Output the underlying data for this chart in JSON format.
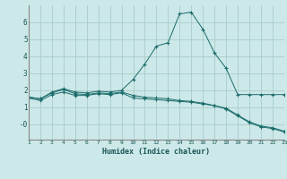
{
  "xlabel": "Humidex (Indice chaleur)",
  "bg_color": "#cce8e8",
  "grid_color": "#aacccc",
  "line_color": "#1a6b6b",
  "xlim": [
    1,
    23
  ],
  "ylim": [
    -0.9,
    7.0
  ],
  "xticks": [
    1,
    2,
    3,
    4,
    5,
    6,
    7,
    8,
    9,
    10,
    11,
    12,
    13,
    14,
    15,
    16,
    17,
    18,
    19,
    20,
    21,
    22,
    23
  ],
  "yticks": [
    0,
    1,
    2,
    3,
    4,
    5,
    6
  ],
  "ytick_labels": [
    "-0",
    "1",
    "2",
    "3",
    "4",
    "5",
    "6"
  ],
  "line1_x": [
    1,
    2,
    3,
    4,
    5,
    6,
    7,
    8,
    9,
    10,
    11,
    12,
    13,
    14,
    15,
    16,
    17,
    18,
    19,
    20,
    21,
    22,
    23
  ],
  "line1_y": [
    1.6,
    1.5,
    1.9,
    2.1,
    1.9,
    1.85,
    1.95,
    1.9,
    2.0,
    2.65,
    3.55,
    4.6,
    4.8,
    6.5,
    6.6,
    5.6,
    4.2,
    3.3,
    1.75,
    1.75,
    1.75,
    1.75,
    1.75
  ],
  "line2_x": [
    1,
    2,
    3,
    4,
    5,
    6,
    7,
    8,
    9,
    10,
    11,
    12,
    13,
    14,
    15,
    16,
    17,
    18,
    19,
    20,
    21,
    22,
    23
  ],
  "line2_y": [
    1.55,
    1.4,
    1.75,
    1.9,
    1.7,
    1.7,
    1.8,
    1.75,
    1.85,
    1.55,
    1.5,
    1.45,
    1.4,
    1.35,
    1.3,
    1.2,
    1.1,
    0.9,
    0.5,
    0.1,
    -0.15,
    -0.25,
    -0.45
  ],
  "line3_x": [
    1,
    2,
    3,
    4,
    5,
    6,
    7,
    8,
    9,
    10,
    11,
    12,
    13,
    14,
    15,
    16,
    17,
    18,
    19,
    20,
    21,
    22,
    23
  ],
  "line3_y": [
    1.6,
    1.5,
    1.85,
    2.05,
    1.8,
    1.75,
    1.85,
    1.8,
    1.9,
    1.7,
    1.6,
    1.55,
    1.5,
    1.4,
    1.35,
    1.25,
    1.1,
    0.95,
    0.55,
    0.15,
    -0.1,
    -0.2,
    -0.4
  ]
}
